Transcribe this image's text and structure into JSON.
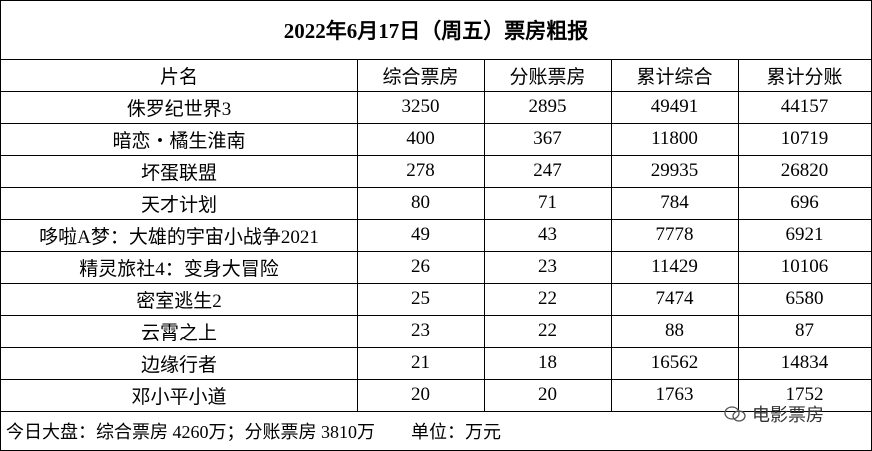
{
  "title": "2022年6月17日（周五）票房粗报",
  "table": {
    "header": [
      "片名",
      "综合票房",
      "分账票房",
      "累计综合",
      "累计分账"
    ],
    "rows": [
      [
        "侏罗纪世界3",
        3250,
        2895,
        49491,
        44157
      ],
      [
        "暗恋・橘生淮南",
        400,
        367,
        11800,
        10719
      ],
      [
        "坏蛋联盟",
        278,
        247,
        29935,
        26820
      ],
      [
        "天才计划",
        80,
        71,
        784,
        696
      ],
      [
        "哆啦A梦：大雄的宇宙小战争2021",
        49,
        43,
        7778,
        6921
      ],
      [
        "精灵旅社4：变身大冒险",
        26,
        23,
        11429,
        10106
      ],
      [
        "密室逃生2",
        25,
        22,
        7474,
        6580
      ],
      [
        "云霄之上",
        23,
        22,
        88,
        87
      ],
      [
        "边缘行者",
        21,
        18,
        16562,
        14834
      ],
      [
        "邓小平小道",
        20,
        20,
        1763,
        1752
      ]
    ]
  },
  "footer": "今日大盘：综合票房 4260万；分账票房 3810万　　单位：万元",
  "watermark": "电影票房"
}
